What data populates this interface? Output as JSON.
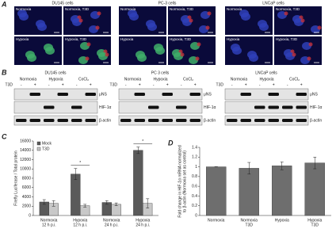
{
  "figure": {
    "panel_A": {
      "letter": "A",
      "groups": [
        {
          "title": "DU145 cells",
          "images": [
            "Normoxia",
            "Normoxia, T3D",
            "Hypoxia",
            "Hypoxia, T3D"
          ]
        },
        {
          "title": "PC-3 cells",
          "images": [
            "Normoxia",
            "Normoxia, T3D",
            "Hypoxia",
            "Hypoxia, T3D"
          ]
        },
        {
          "title": "LNCaP cells",
          "images": [
            "Normoxia",
            "Normoxia, T3D",
            "Hypoxia",
            "Hypoxia, T3D"
          ]
        }
      ]
    },
    "panel_B": {
      "letter": "B",
      "groups": [
        {
          "title": "DU145 cells",
          "conditions": [
            "Normoxia",
            "Hypoxia",
            "CoCl₂"
          ],
          "t3d": "T3D",
          "signs": [
            "-",
            "+",
            "-",
            "+",
            "-",
            "+"
          ],
          "rows": [
            "μNS",
            "HIF-1α",
            "β-actin"
          ]
        },
        {
          "title": "PC 3 cells",
          "conditions": [
            "Normoxia",
            "Hypoxia",
            "CoCl₂"
          ],
          "t3d": "T3D",
          "signs": [
            "-",
            "+",
            "-",
            "+",
            "-",
            "+"
          ],
          "rows": [
            "μNS",
            "HIF-1α",
            "β-actin"
          ]
        },
        {
          "title": "LNCaP cells",
          "conditions": [
            "Normoxia",
            "Hypoxia",
            "CoCl₂"
          ],
          "t3d": "T3D",
          "signs": [
            "-",
            "+",
            "-",
            "+",
            "-",
            "+"
          ],
          "rows": [
            "μNS",
            "HIF-1α",
            "β-actin"
          ]
        }
      ]
    }
  },
  "chart_data": [
    {
      "type": "bar",
      "letter": "C",
      "y_label": "Firefly Luciferase / Total protein",
      "categories": [
        [
          "Normoxia",
          "12 h p.i."
        ],
        [
          "Hypoxia",
          "12 h p.i."
        ],
        [
          "Normoxia",
          "24 h p.i."
        ],
        [
          "Hypoxia",
          "24 h p.i."
        ]
      ],
      "series": [
        {
          "name": "Mock",
          "color": "#5a5a5a",
          "values": [
            2900,
            8900,
            2800,
            14000
          ],
          "errors": [
            500,
            1200,
            400,
            700
          ]
        },
        {
          "name": "T3D",
          "color": "#c8c8c8",
          "values": [
            2600,
            2100,
            2400,
            2600
          ],
          "errors": [
            600,
            300,
            300,
            1000
          ]
        }
      ],
      "ylim": [
        0,
        16000
      ],
      "yticks": [
        0,
        2000,
        4000,
        6000,
        8000,
        10000,
        12000,
        14000,
        16000
      ],
      "legend": "upper left",
      "annotations": [
        "*",
        "*"
      ]
    },
    {
      "type": "bar",
      "letter": "D",
      "y_label": [
        "Fold change in HIF-1α mRNA normalized",
        "to β-actin (Normoxia set as control)"
      ],
      "categories": [
        [
          "Normoxia"
        ],
        [
          "Normoxia",
          "T3D"
        ],
        [
          "Hypoxia"
        ],
        [
          "Hypoxia",
          "T3D"
        ]
      ],
      "series": [
        {
          "color": "#6e6e6e",
          "values": [
            1.0,
            0.97,
            1.02,
            1.08
          ],
          "errors": [
            0,
            0.12,
            0.08,
            0.12
          ]
        }
      ],
      "ylim": [
        0,
        1.4
      ],
      "yticks": [
        0,
        0.2,
        0.4,
        0.6,
        0.8,
        1,
        1.2,
        1.4
      ]
    }
  ]
}
